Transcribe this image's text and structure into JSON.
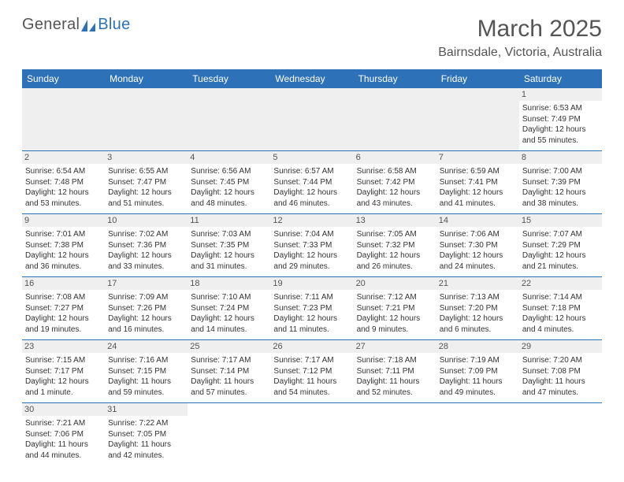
{
  "logo": {
    "text_a": "General",
    "text_b": "Blue"
  },
  "title": "March 2025",
  "location": "Bairnsdale, Victoria, Australia",
  "colors": {
    "header_bg": "#2d72b8",
    "header_text": "#ffffff",
    "daynum_bg": "#efefef",
    "border": "#2d72b8",
    "text": "#333333"
  },
  "day_headers": [
    "Sunday",
    "Monday",
    "Tuesday",
    "Wednesday",
    "Thursday",
    "Friday",
    "Saturday"
  ],
  "weeks": [
    [
      null,
      null,
      null,
      null,
      null,
      null,
      {
        "n": "1",
        "sr": "Sunrise: 6:53 AM",
        "ss": "Sunset: 7:49 PM",
        "d1": "Daylight: 12 hours",
        "d2": "and 55 minutes."
      }
    ],
    [
      {
        "n": "2",
        "sr": "Sunrise: 6:54 AM",
        "ss": "Sunset: 7:48 PM",
        "d1": "Daylight: 12 hours",
        "d2": "and 53 minutes."
      },
      {
        "n": "3",
        "sr": "Sunrise: 6:55 AM",
        "ss": "Sunset: 7:47 PM",
        "d1": "Daylight: 12 hours",
        "d2": "and 51 minutes."
      },
      {
        "n": "4",
        "sr": "Sunrise: 6:56 AM",
        "ss": "Sunset: 7:45 PM",
        "d1": "Daylight: 12 hours",
        "d2": "and 48 minutes."
      },
      {
        "n": "5",
        "sr": "Sunrise: 6:57 AM",
        "ss": "Sunset: 7:44 PM",
        "d1": "Daylight: 12 hours",
        "d2": "and 46 minutes."
      },
      {
        "n": "6",
        "sr": "Sunrise: 6:58 AM",
        "ss": "Sunset: 7:42 PM",
        "d1": "Daylight: 12 hours",
        "d2": "and 43 minutes."
      },
      {
        "n": "7",
        "sr": "Sunrise: 6:59 AM",
        "ss": "Sunset: 7:41 PM",
        "d1": "Daylight: 12 hours",
        "d2": "and 41 minutes."
      },
      {
        "n": "8",
        "sr": "Sunrise: 7:00 AM",
        "ss": "Sunset: 7:39 PM",
        "d1": "Daylight: 12 hours",
        "d2": "and 38 minutes."
      }
    ],
    [
      {
        "n": "9",
        "sr": "Sunrise: 7:01 AM",
        "ss": "Sunset: 7:38 PM",
        "d1": "Daylight: 12 hours",
        "d2": "and 36 minutes."
      },
      {
        "n": "10",
        "sr": "Sunrise: 7:02 AM",
        "ss": "Sunset: 7:36 PM",
        "d1": "Daylight: 12 hours",
        "d2": "and 33 minutes."
      },
      {
        "n": "11",
        "sr": "Sunrise: 7:03 AM",
        "ss": "Sunset: 7:35 PM",
        "d1": "Daylight: 12 hours",
        "d2": "and 31 minutes."
      },
      {
        "n": "12",
        "sr": "Sunrise: 7:04 AM",
        "ss": "Sunset: 7:33 PM",
        "d1": "Daylight: 12 hours",
        "d2": "and 29 minutes."
      },
      {
        "n": "13",
        "sr": "Sunrise: 7:05 AM",
        "ss": "Sunset: 7:32 PM",
        "d1": "Daylight: 12 hours",
        "d2": "and 26 minutes."
      },
      {
        "n": "14",
        "sr": "Sunrise: 7:06 AM",
        "ss": "Sunset: 7:30 PM",
        "d1": "Daylight: 12 hours",
        "d2": "and 24 minutes."
      },
      {
        "n": "15",
        "sr": "Sunrise: 7:07 AM",
        "ss": "Sunset: 7:29 PM",
        "d1": "Daylight: 12 hours",
        "d2": "and 21 minutes."
      }
    ],
    [
      {
        "n": "16",
        "sr": "Sunrise: 7:08 AM",
        "ss": "Sunset: 7:27 PM",
        "d1": "Daylight: 12 hours",
        "d2": "and 19 minutes."
      },
      {
        "n": "17",
        "sr": "Sunrise: 7:09 AM",
        "ss": "Sunset: 7:26 PM",
        "d1": "Daylight: 12 hours",
        "d2": "and 16 minutes."
      },
      {
        "n": "18",
        "sr": "Sunrise: 7:10 AM",
        "ss": "Sunset: 7:24 PM",
        "d1": "Daylight: 12 hours",
        "d2": "and 14 minutes."
      },
      {
        "n": "19",
        "sr": "Sunrise: 7:11 AM",
        "ss": "Sunset: 7:23 PM",
        "d1": "Daylight: 12 hours",
        "d2": "and 11 minutes."
      },
      {
        "n": "20",
        "sr": "Sunrise: 7:12 AM",
        "ss": "Sunset: 7:21 PM",
        "d1": "Daylight: 12 hours",
        "d2": "and 9 minutes."
      },
      {
        "n": "21",
        "sr": "Sunrise: 7:13 AM",
        "ss": "Sunset: 7:20 PM",
        "d1": "Daylight: 12 hours",
        "d2": "and 6 minutes."
      },
      {
        "n": "22",
        "sr": "Sunrise: 7:14 AM",
        "ss": "Sunset: 7:18 PM",
        "d1": "Daylight: 12 hours",
        "d2": "and 4 minutes."
      }
    ],
    [
      {
        "n": "23",
        "sr": "Sunrise: 7:15 AM",
        "ss": "Sunset: 7:17 PM",
        "d1": "Daylight: 12 hours",
        "d2": "and 1 minute."
      },
      {
        "n": "24",
        "sr": "Sunrise: 7:16 AM",
        "ss": "Sunset: 7:15 PM",
        "d1": "Daylight: 11 hours",
        "d2": "and 59 minutes."
      },
      {
        "n": "25",
        "sr": "Sunrise: 7:17 AM",
        "ss": "Sunset: 7:14 PM",
        "d1": "Daylight: 11 hours",
        "d2": "and 57 minutes."
      },
      {
        "n": "26",
        "sr": "Sunrise: 7:17 AM",
        "ss": "Sunset: 7:12 PM",
        "d1": "Daylight: 11 hours",
        "d2": "and 54 minutes."
      },
      {
        "n": "27",
        "sr": "Sunrise: 7:18 AM",
        "ss": "Sunset: 7:11 PM",
        "d1": "Daylight: 11 hours",
        "d2": "and 52 minutes."
      },
      {
        "n": "28",
        "sr": "Sunrise: 7:19 AM",
        "ss": "Sunset: 7:09 PM",
        "d1": "Daylight: 11 hours",
        "d2": "and 49 minutes."
      },
      {
        "n": "29",
        "sr": "Sunrise: 7:20 AM",
        "ss": "Sunset: 7:08 PM",
        "d1": "Daylight: 11 hours",
        "d2": "and 47 minutes."
      }
    ],
    [
      {
        "n": "30",
        "sr": "Sunrise: 7:21 AM",
        "ss": "Sunset: 7:06 PM",
        "d1": "Daylight: 11 hours",
        "d2": "and 44 minutes."
      },
      {
        "n": "31",
        "sr": "Sunrise: 7:22 AM",
        "ss": "Sunset: 7:05 PM",
        "d1": "Daylight: 11 hours",
        "d2": "and 42 minutes."
      },
      null,
      null,
      null,
      null,
      null
    ]
  ]
}
